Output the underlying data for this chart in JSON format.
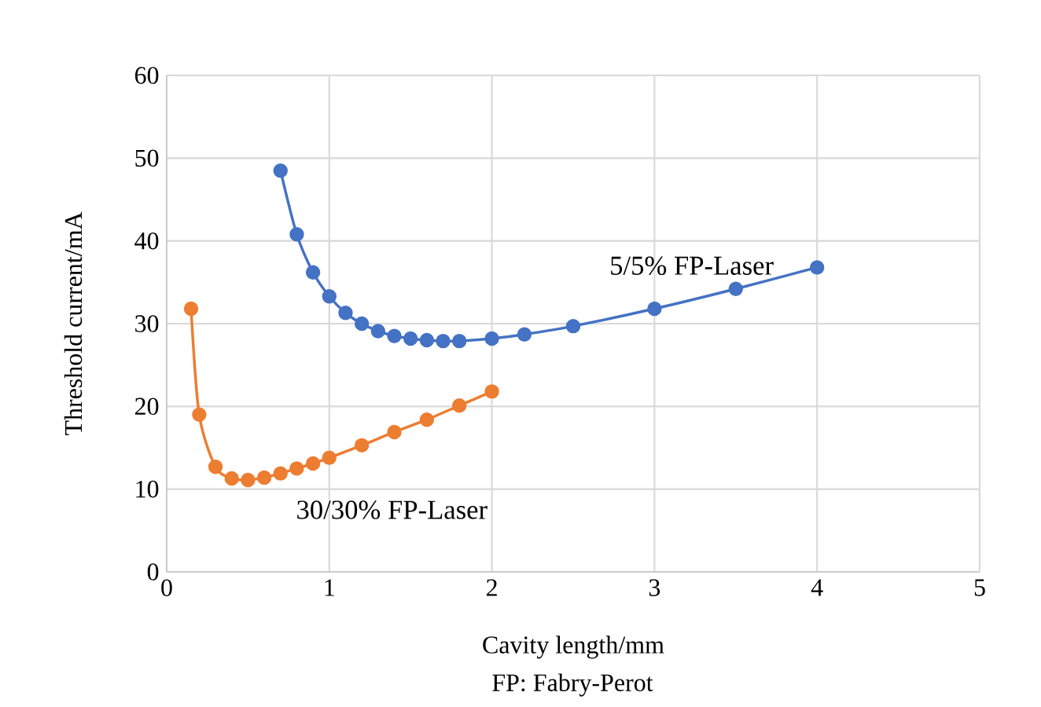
{
  "chart_data": {
    "type": "line",
    "xlabel": "Cavity length/mm",
    "ylabel": "Threshold current/mA",
    "annotations": [
      "FP: Fabry-Perot"
    ],
    "series": [
      {
        "name": "5/5% FP-Laser",
        "color": "#4472c4",
        "x": [
          0.7,
          0.8,
          0.9,
          1.0,
          1.1,
          1.2,
          1.3,
          1.4,
          1.5,
          1.6,
          1.7,
          1.8,
          2.0,
          2.2,
          2.5,
          3.0,
          3.5,
          4.0
        ],
        "values": [
          48.5,
          40.8,
          36.2,
          33.3,
          31.3,
          30.0,
          29.1,
          28.5,
          28.2,
          28.0,
          27.9,
          27.9,
          28.2,
          28.7,
          29.7,
          31.8,
          34.2,
          36.8
        ]
      },
      {
        "name": "30/30% FP-Laser",
        "color": "#ed7d31",
        "x": [
          0.15,
          0.2,
          0.3,
          0.4,
          0.5,
          0.6,
          0.7,
          0.8,
          0.9,
          1.0,
          1.2,
          1.4,
          1.6,
          1.8,
          2.0
        ],
        "values": [
          31.8,
          19.0,
          12.7,
          11.3,
          11.1,
          11.4,
          11.9,
          12.5,
          13.1,
          13.8,
          15.3,
          16.9,
          18.4,
          20.1,
          21.8
        ]
      }
    ],
    "xlim": [
      0,
      5
    ],
    "xticks": [
      0,
      1,
      2,
      3,
      4,
      5
    ],
    "ylim": [
      0,
      60
    ],
    "yticks": [
      0,
      10,
      20,
      30,
      40,
      50,
      60
    ],
    "grid": true,
    "marker": "circle",
    "line_style": "solid"
  }
}
